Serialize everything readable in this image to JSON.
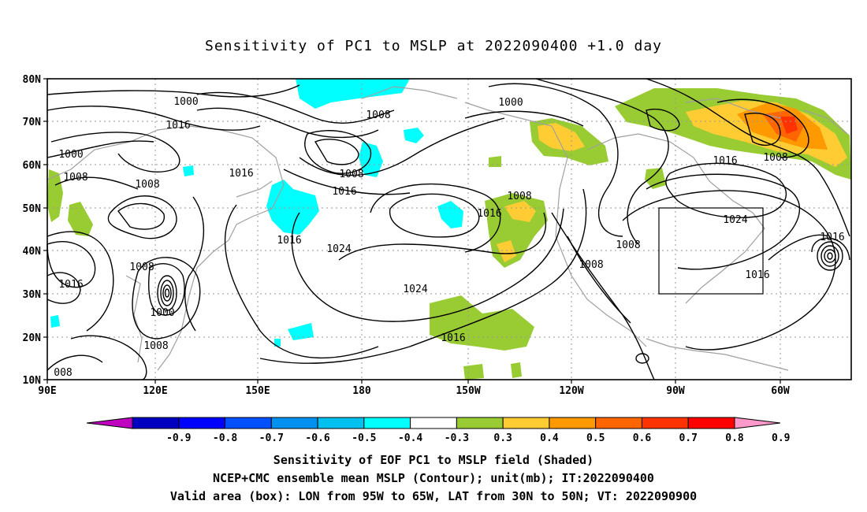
{
  "title": "Sensitivity of PC1 to MSLP at 2022090400 +1.0 day",
  "axes": {
    "lat_labels": [
      "80N",
      "70N",
      "60N",
      "50N",
      "40N",
      "30N",
      "20N",
      "10N"
    ],
    "lon_labels": [
      "90E",
      "120E",
      "150E",
      "180",
      "150W",
      "120W",
      "90W",
      "60W"
    ]
  },
  "contours": [
    {
      "label": "1000"
    },
    {
      "label": "1016"
    },
    {
      "label": "1000"
    },
    {
      "label": "1008"
    },
    {
      "label": "1008"
    },
    {
      "label": "1016"
    },
    {
      "label": "1008"
    },
    {
      "label": "1008"
    },
    {
      "label": "1016"
    },
    {
      "label": "1000"
    },
    {
      "label": "1008"
    },
    {
      "label": "1016"
    },
    {
      "label": "1008"
    },
    {
      "label": "1016"
    },
    {
      "label": "1024"
    },
    {
      "label": "1024"
    },
    {
      "label": "1008"
    },
    {
      "label": "1016"
    },
    {
      "label": "1016"
    },
    {
      "label": "1008"
    },
    {
      "label": "1008"
    },
    {
      "label": "1000"
    },
    {
      "label": "1016"
    },
    {
      "label": "1024"
    },
    {
      "label": "1016"
    },
    {
      "label": "1016"
    },
    {
      "label": "1008"
    },
    {
      "label": "008"
    }
  ],
  "colorbar": {
    "labels": [
      "-0.9",
      "-0.8",
      "-0.7",
      "-0.6",
      "-0.5",
      "-0.4",
      "-0.3",
      "0.3",
      "0.4",
      "0.5",
      "0.6",
      "0.7",
      "0.8",
      "0.9"
    ],
    "colors": [
      "#c000c0",
      "#0000c0",
      "#0000ff",
      "#0050ff",
      "#0090f0",
      "#00c0f0",
      "#00ffff",
      "#ffffff",
      "#99cc33",
      "#ffcc33",
      "#ff9900",
      "#ff6600",
      "#ff3300",
      "#ff0000",
      "#ff99cc"
    ]
  },
  "captions": [
    "Sensitivity of EOF PC1 to MSLP field (Shaded)",
    "NCEP+CMC ensemble mean MSLP (Contour); unit(mb); IT:2022090400",
    "Valid area (box): LON from 95W to 65W, LAT from 30N to 50N; VT: 2022090900"
  ]
}
